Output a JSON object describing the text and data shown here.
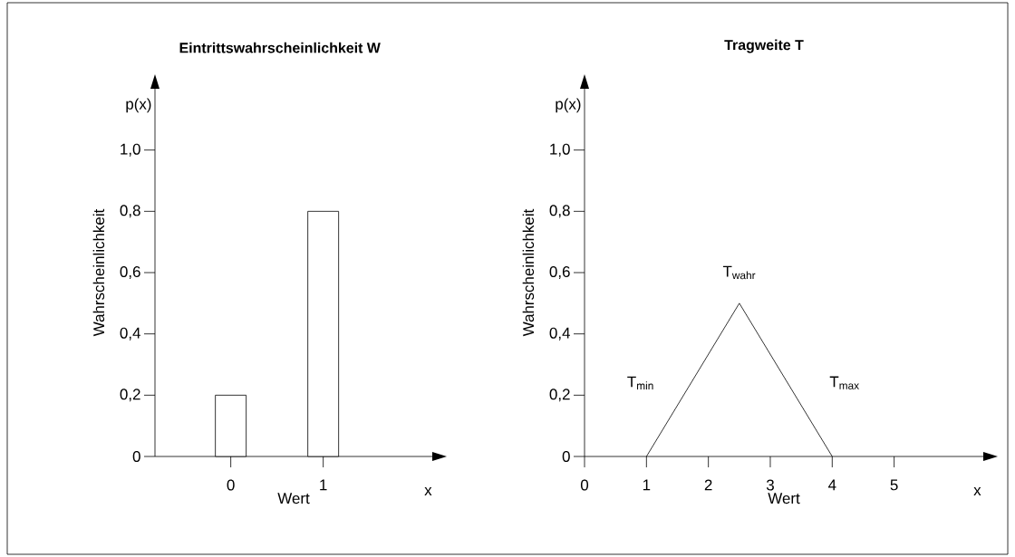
{
  "chart_data": [
    {
      "type": "bar",
      "title": "Eintrittswahrscheinlichkeit W",
      "xlabel": "Wert",
      "ylabel": "Wahrscheinlichkeit",
      "categories": [
        "0",
        "1"
      ],
      "values": [
        0.2,
        0.8
      ],
      "color": "#ffffff",
      "ylim": [
        0,
        1.2
      ],
      "yticks": [
        0,
        {
          "value": 0.2,
          "label": "0,2"
        },
        {
          "value": 0.4,
          "label": "0,4"
        },
        {
          "value": 0.6,
          "label": "0,6"
        },
        {
          "value": 0.8,
          "label": "0,8"
        },
        {
          "value": 1,
          "label": "1,0"
        }
      ],
      "annotations": [
        "p(x)",
        "x"
      ]
    },
    {
      "type": "line",
      "title": "Tragweite T",
      "xlabel": "Wert",
      "ylabel": "Wahrscheinlichkeit",
      "x": [
        1,
        2.5,
        4
      ],
      "values": [
        0,
        0.5,
        0
      ],
      "color": "#000000",
      "xlim": [
        0,
        6.44
      ],
      "xticks": [
        0,
        1,
        2,
        3,
        4,
        5
      ],
      "ylim": [
        0,
        1.2
      ],
      "yticks": [
        0,
        {
          "value": 0.2,
          "label": "0,2"
        },
        {
          "value": 0.4,
          "label": "0,4"
        },
        {
          "value": 0.6,
          "label": "0,6"
        },
        {
          "value": 0.8,
          "label": "0,8"
        },
        {
          "value": 1,
          "label": "1,0"
        }
      ],
      "annotations": [
        "p(x)",
        "x",
        "T$_{min}$",
        "T$_{wahr}$",
        "T$_{max}$"
      ]
    }
  ]
}
